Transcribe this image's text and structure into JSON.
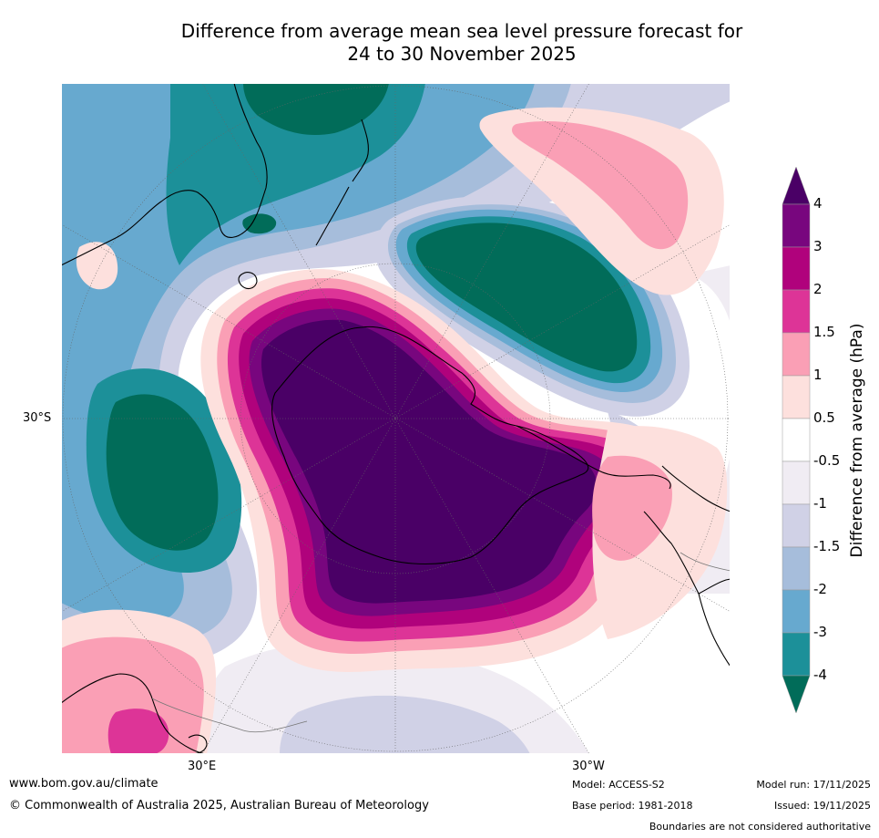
{
  "title": {
    "line1": "Difference from average mean sea level pressure forecast for",
    "line2": "24 to 30 November 2025"
  },
  "map": {
    "projection": "south-polar-stereographic",
    "longitude_labels": [
      "30°E",
      "30°W"
    ],
    "latitude_labels": [
      "30°S"
    ],
    "regions": [
      "Antarctica",
      "Australia",
      "New Zealand",
      "South America",
      "Africa"
    ],
    "features": [
      {
        "name": "pressure-high-antarctica",
        "sign": "positive",
        "range": ">4 hPa"
      },
      {
        "name": "pressure-low-south-pacific",
        "sign": "negative",
        "range": "<-4 hPa"
      },
      {
        "name": "pressure-low-south-indian",
        "sign": "negative",
        "range": "<-4 hPa"
      },
      {
        "name": "pressure-low-tasman",
        "sign": "negative",
        "range": "<-4 hPa"
      },
      {
        "name": "pressure-high-mid-pacific",
        "sign": "positive",
        "range": "1.5 to 2 hPa"
      },
      {
        "name": "pressure-high-south-atlantic",
        "sign": "positive",
        "range": "1.5 to 3 hPa"
      }
    ]
  },
  "colorbar": {
    "label": "Difference from average (hPa)",
    "ticks": [
      "4",
      "3",
      "2",
      "1.5",
      "1",
      "0.5",
      "-0.5",
      "-1",
      "-1.5",
      "-2",
      "-3",
      "-4"
    ],
    "colors": {
      "above_4": "#4a0066",
      "c3_4": "#78067e",
      "c2_3": "#b0027c",
      "c15_2": "#dd3497",
      "c1_15": "#fa9fb5",
      "c05_1": "#fde0dd",
      "neutral": "#ffffff",
      "cm1_m05": "#f0ecf3",
      "cm15_m1": "#d0d1e6",
      "cm2_m15": "#a6bddb",
      "cm3_m2": "#67a9cf",
      "cm4_m3": "#1c9099",
      "below_m4": "#016c59"
    }
  },
  "footer": {
    "website": "www.bom.gov.au/climate",
    "copyright": "© Commonwealth of Australia 2025, Australian Bureau of Meteorology",
    "model": "Model: ACCESS-S2",
    "base_period": "Base period: 1981-2018",
    "model_run": "Model run: 17/11/2025",
    "issued": "Issued: 19/11/2025",
    "disclaimer": "Boundaries are not considered authoritative"
  }
}
